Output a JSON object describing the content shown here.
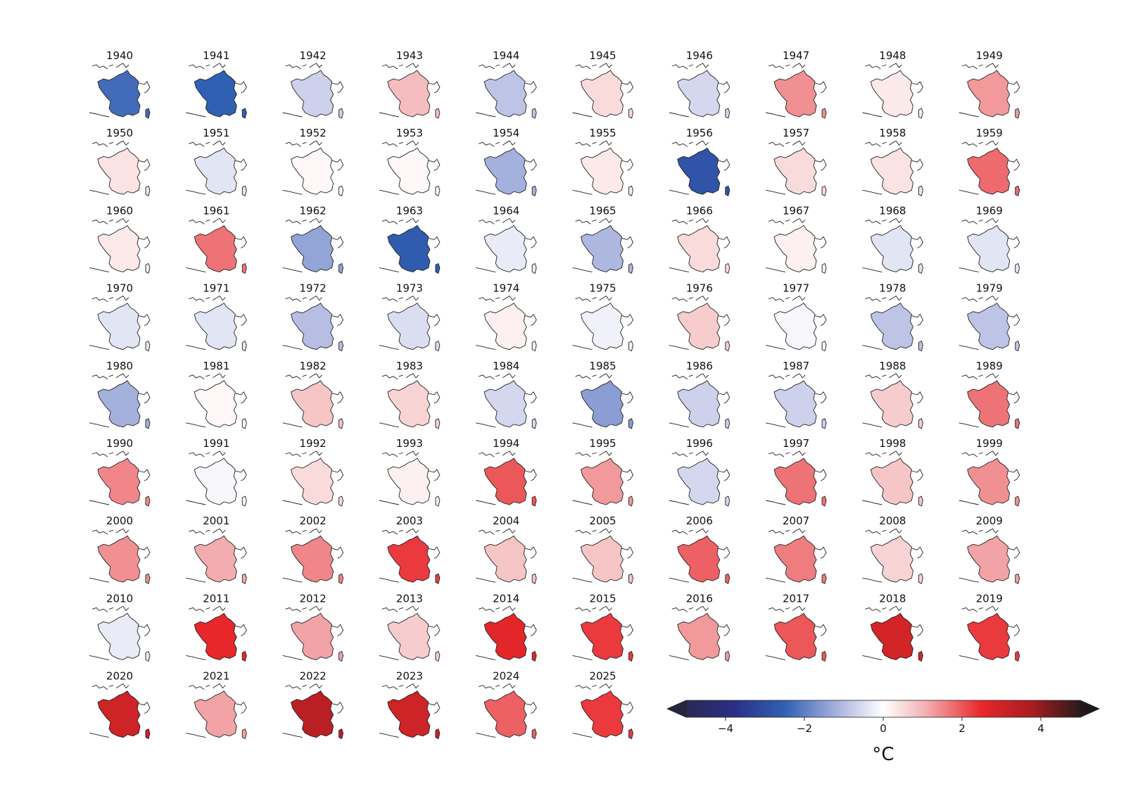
{
  "chart_data": {
    "type": "heatmap",
    "title": "",
    "description": "Small-multiple maps of France, yearly temperature anomaly, one panel per year",
    "columns": 10,
    "panels": [
      {
        "year": "1940",
        "anomaly": -2.3
      },
      {
        "year": "1941",
        "anomaly": -2.5
      },
      {
        "year": "1942",
        "anomaly": -0.7
      },
      {
        "year": "1943",
        "anomaly": 0.9
      },
      {
        "year": "1944",
        "anomaly": -0.9
      },
      {
        "year": "1945",
        "anomaly": 0.5
      },
      {
        "year": "1946",
        "anomaly": -0.6
      },
      {
        "year": "1947",
        "anomaly": 1.4
      },
      {
        "year": "1948",
        "anomaly": 0.3
      },
      {
        "year": "1949",
        "anomaly": 1.3
      },
      {
        "year": "1950",
        "anomaly": 0.4
      },
      {
        "year": "1951",
        "anomaly": -0.4
      },
      {
        "year": "1952",
        "anomaly": 0.1
      },
      {
        "year": "1953",
        "anomaly": 0.1
      },
      {
        "year": "1954",
        "anomaly": -1.2
      },
      {
        "year": "1955",
        "anomaly": 0.3
      },
      {
        "year": "1956",
        "anomaly": -2.8
      },
      {
        "year": "1957",
        "anomaly": 0.5
      },
      {
        "year": "1958",
        "anomaly": 0.4
      },
      {
        "year": "1959",
        "anomaly": 1.8
      },
      {
        "year": "1960",
        "anomaly": 0.3
      },
      {
        "year": "1961",
        "anomaly": 1.7
      },
      {
        "year": "1962",
        "anomaly": -1.4
      },
      {
        "year": "1963",
        "anomaly": -2.6
      },
      {
        "year": "1964",
        "anomaly": -0.3
      },
      {
        "year": "1965",
        "anomaly": -1.1
      },
      {
        "year": "1966",
        "anomaly": 0.5
      },
      {
        "year": "1967",
        "anomaly": 0.2
      },
      {
        "year": "1968",
        "anomaly": -0.4
      },
      {
        "year": "1969",
        "anomaly": -0.4
      },
      {
        "year": "1970",
        "anomaly": -0.4
      },
      {
        "year": "1971",
        "anomaly": -0.4
      },
      {
        "year": "1972",
        "anomaly": -1.0
      },
      {
        "year": "1973",
        "anomaly": -0.5
      },
      {
        "year": "1974",
        "anomaly": 0.2
      },
      {
        "year": "1975",
        "anomaly": -0.2
      },
      {
        "year": "1976",
        "anomaly": 0.7
      },
      {
        "year": "1977",
        "anomaly": -0.1
      },
      {
        "year": "1978",
        "anomaly": -0.9
      },
      {
        "year": "1979",
        "anomaly": -0.9
      },
      {
        "year": "1980",
        "anomaly": -1.2
      },
      {
        "year": "1981",
        "anomaly": 0.1
      },
      {
        "year": "1982",
        "anomaly": 0.8
      },
      {
        "year": "1983",
        "anomaly": 0.6
      },
      {
        "year": "1984",
        "anomaly": -0.6
      },
      {
        "year": "1985",
        "anomaly": -1.5
      },
      {
        "year": "1986",
        "anomaly": -0.7
      },
      {
        "year": "1987",
        "anomaly": -0.7
      },
      {
        "year": "1988",
        "anomaly": 0.7
      },
      {
        "year": "1989",
        "anomaly": 1.7
      },
      {
        "year": "1990",
        "anomaly": 1.5
      },
      {
        "year": "1991",
        "anomaly": -0.1
      },
      {
        "year": "1992",
        "anomaly": 0.5
      },
      {
        "year": "1993",
        "anomaly": 0.2
      },
      {
        "year": "1994",
        "anomaly": 2.0
      },
      {
        "year": "1995",
        "anomaly": 1.3
      },
      {
        "year": "1996",
        "anomaly": -0.6
      },
      {
        "year": "1997",
        "anomaly": 1.7
      },
      {
        "year": "1998",
        "anomaly": 0.8
      },
      {
        "year": "1999",
        "anomaly": 1.4
      },
      {
        "year": "2000",
        "anomaly": 1.4
      },
      {
        "year": "2001",
        "anomaly": 1.1
      },
      {
        "year": "2002",
        "anomaly": 1.5
      },
      {
        "year": "2003",
        "anomaly": 2.3
      },
      {
        "year": "2004",
        "anomaly": 0.8
      },
      {
        "year": "2005",
        "anomaly": 0.8
      },
      {
        "year": "2006",
        "anomaly": 1.9
      },
      {
        "year": "2007",
        "anomaly": 1.6
      },
      {
        "year": "2008",
        "anomaly": 0.6
      },
      {
        "year": "2009",
        "anomaly": 1.2
      },
      {
        "year": "2010",
        "anomaly": -0.3
      },
      {
        "year": "2011",
        "anomaly": 2.5
      },
      {
        "year": "2012",
        "anomaly": 1.2
      },
      {
        "year": "2013",
        "anomaly": 0.7
      },
      {
        "year": "2014",
        "anomaly": 2.6
      },
      {
        "year": "2015",
        "anomaly": 2.3
      },
      {
        "year": "2016",
        "anomaly": 1.3
      },
      {
        "year": "2017",
        "anomaly": 2.0
      },
      {
        "year": "2018",
        "anomaly": 2.9
      },
      {
        "year": "2019",
        "anomaly": 2.3
      },
      {
        "year": "2020",
        "anomaly": 3.0
      },
      {
        "year": "2021",
        "anomaly": 1.2
      },
      {
        "year": "2022",
        "anomaly": 3.4
      },
      {
        "year": "2023",
        "anomaly": 3.0
      },
      {
        "year": "2024",
        "anomaly": 1.9
      },
      {
        "year": "2025",
        "anomaly": 2.3
      }
    ],
    "colorbar": {
      "label": "°C",
      "vmin": -5,
      "vmax": 5,
      "ticks": [
        {
          "value": -4,
          "label": "−4"
        },
        {
          "value": -2,
          "label": "−2"
        },
        {
          "value": 0,
          "label": "0"
        },
        {
          "value": 2,
          "label": "2"
        },
        {
          "value": 4,
          "label": "4"
        }
      ],
      "extend": "both",
      "colors": [
        "#1a1a1a",
        "#2a2a7a",
        "#2e5fb0",
        "#ffffff",
        "#e8272b",
        "#8b1a1a",
        "#1a1a1a"
      ]
    }
  }
}
